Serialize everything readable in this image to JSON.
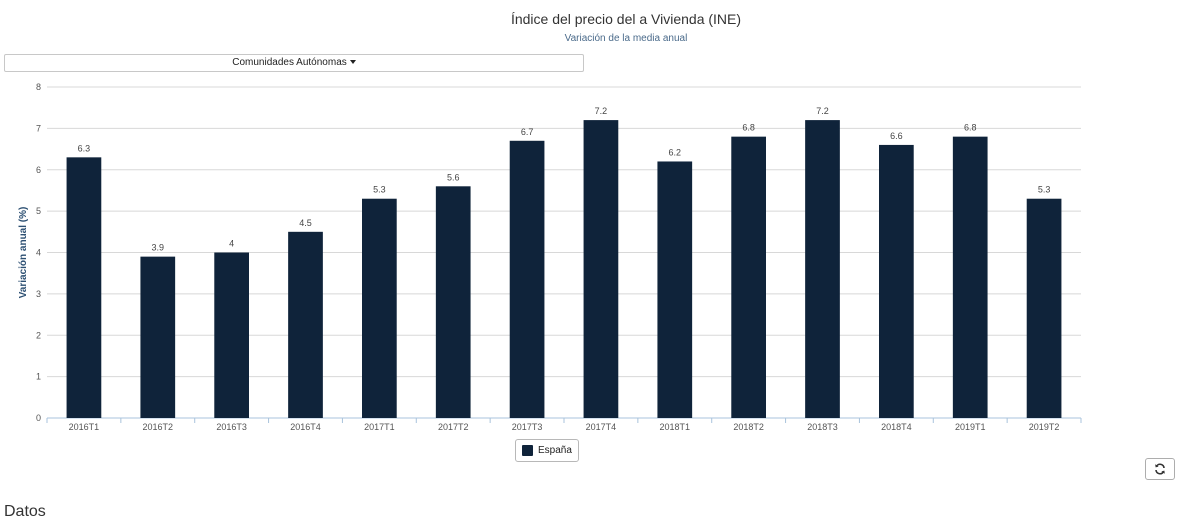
{
  "header": {
    "title": "Índice del precio del a Vivienda (INE)",
    "subtitle": "Variación de la media anual"
  },
  "dropdown": {
    "label": "Comunidades Autónomas"
  },
  "legend": {
    "label": "España",
    "color": "#0f233a"
  },
  "footer": {
    "section_heading": "Datos"
  },
  "refresh_icon": "refresh-icon",
  "chart_data": {
    "type": "bar",
    "categories": [
      "2016T1",
      "2016T2",
      "2016T3",
      "2016T4",
      "2017T1",
      "2017T2",
      "2017T3",
      "2017T4",
      "2018T1",
      "2018T2",
      "2018T3",
      "2018T4",
      "2019T1",
      "2019T2"
    ],
    "series": [
      {
        "name": "España",
        "values": [
          6.3,
          3.9,
          4,
          4.5,
          5.3,
          5.6,
          6.7,
          7.2,
          6.2,
          6.8,
          7.2,
          6.6,
          6.8,
          5.3
        ],
        "color": "#0f233a"
      }
    ],
    "ylabel": "Variación anual (%)",
    "ylim": [
      0,
      8
    ],
    "yticks": [
      0,
      1,
      2,
      3,
      4,
      5,
      6,
      7,
      8
    ],
    "grid": true,
    "legend_position": "bottom-center"
  }
}
